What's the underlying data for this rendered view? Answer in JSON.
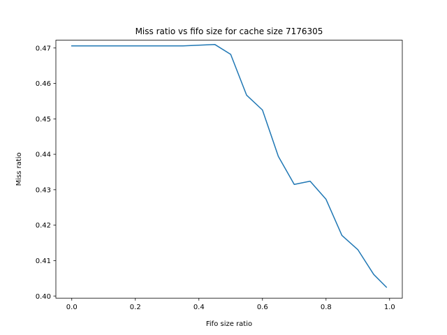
{
  "chart_data": {
    "type": "line",
    "title": "Miss ratio vs fifo size for cache size 7176305",
    "xlabel": "Fifo size ratio",
    "ylabel": "Miss ratio",
    "xlim": [
      -0.05,
      1.04
    ],
    "ylim": [
      0.3994,
      0.4722
    ],
    "xticks": [
      0.0,
      0.2,
      0.4,
      0.6,
      0.8,
      1.0
    ],
    "xtick_labels": [
      "0.0",
      "0.2",
      "0.4",
      "0.6",
      "0.8",
      "1.0"
    ],
    "yticks": [
      0.4,
      0.41,
      0.42,
      0.43,
      0.44,
      0.45,
      0.46,
      0.47
    ],
    "ytick_labels": [
      "0.40",
      "0.41",
      "0.42",
      "0.43",
      "0.44",
      "0.45",
      "0.46",
      "0.47"
    ],
    "grid": false,
    "legend": "none",
    "series": [
      {
        "color": "#1f77b4",
        "x": [
          0.0,
          0.05,
          0.1,
          0.15,
          0.2,
          0.25,
          0.3,
          0.35,
          0.4,
          0.45,
          0.5,
          0.55,
          0.6,
          0.65,
          0.7,
          0.75,
          0.8,
          0.85,
          0.9,
          0.95,
          0.99
        ],
        "y": [
          0.4706,
          0.4706,
          0.4706,
          0.4706,
          0.4706,
          0.4706,
          0.4706,
          0.4706,
          0.4708,
          0.471,
          0.4682,
          0.4567,
          0.4525,
          0.4394,
          0.4315,
          0.4324,
          0.4273,
          0.4171,
          0.4131,
          0.4061,
          0.4025
        ]
      }
    ]
  }
}
